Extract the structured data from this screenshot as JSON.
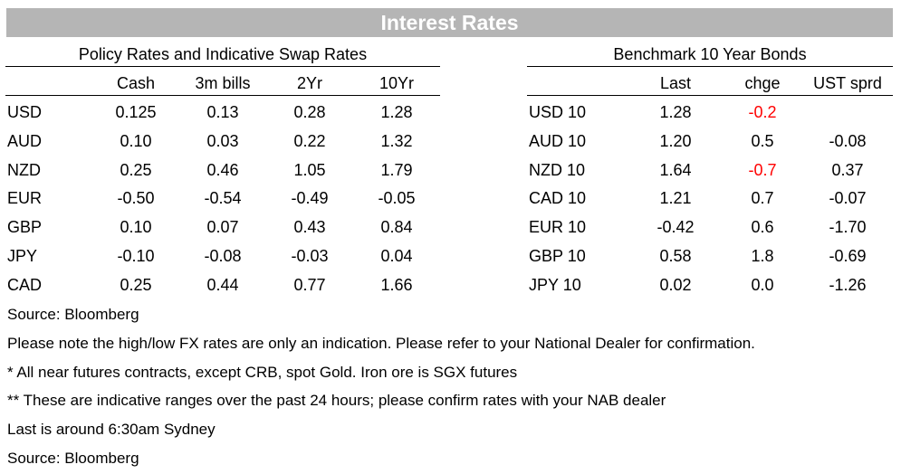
{
  "title": "Interest Rates",
  "policy": {
    "heading": "Policy Rates and Indicative Swap Rates",
    "columns": [
      "Cash",
      "3m bills",
      "2Yr",
      "10Yr"
    ],
    "rows": [
      {
        "label": "USD",
        "values": [
          "0.125",
          "0.13",
          "0.28",
          "1.28"
        ]
      },
      {
        "label": "AUD",
        "values": [
          "0.10",
          "0.03",
          "0.22",
          "1.32"
        ]
      },
      {
        "label": "NZD",
        "values": [
          "0.25",
          "0.46",
          "1.05",
          "1.79"
        ]
      },
      {
        "label": "EUR",
        "values": [
          "-0.50",
          "-0.54",
          "-0.49",
          "-0.05"
        ]
      },
      {
        "label": "GBP",
        "values": [
          "0.10",
          "0.07",
          "0.43",
          "0.84"
        ]
      },
      {
        "label": "JPY",
        "values": [
          "-0.10",
          "-0.08",
          "-0.03",
          "0.04"
        ]
      },
      {
        "label": "CAD",
        "values": [
          "0.25",
          "0.44",
          "0.77",
          "1.66"
        ]
      }
    ]
  },
  "bonds": {
    "heading": "Benchmark 10 Year Bonds",
    "columns": [
      "Last",
      "chge",
      "UST sprd"
    ],
    "rows": [
      {
        "label": "USD 10",
        "last": "1.28",
        "chge": "-0.2",
        "sprd": ""
      },
      {
        "label": "AUD 10",
        "last": "1.20",
        "chge": "0.5",
        "sprd": "-0.08"
      },
      {
        "label": "NZD 10",
        "last": "1.64",
        "chge": "-0.7",
        "sprd": "0.37"
      },
      {
        "label": "CAD 10",
        "last": "1.21",
        "chge": "0.7",
        "sprd": "-0.07"
      },
      {
        "label": "EUR 10",
        "last": "-0.42",
        "chge": "0.6",
        "sprd": "-1.70"
      },
      {
        "label": "GBP 10",
        "last": "0.58",
        "chge": "1.8",
        "sprd": "-0.69"
      },
      {
        "label": "JPY 10",
        "last": "0.02",
        "chge": "0.0",
        "sprd": "-1.26"
      }
    ],
    "negative_change_color": "#ff0000"
  },
  "notes": [
    "Source: Bloomberg",
    "Please note the high/low FX rates are only an indication. Please refer to your National Dealer for confirmation.",
    "* All near futures contracts, except CRB, spot Gold.  Iron ore is SGX futures",
    "** These are indicative ranges over the past 24 hours; please confirm rates with your NAB dealer",
    "Last is around 6:30am Sydney",
    "Source: Bloomberg"
  ],
  "banner_color": "#b5b5b5"
}
